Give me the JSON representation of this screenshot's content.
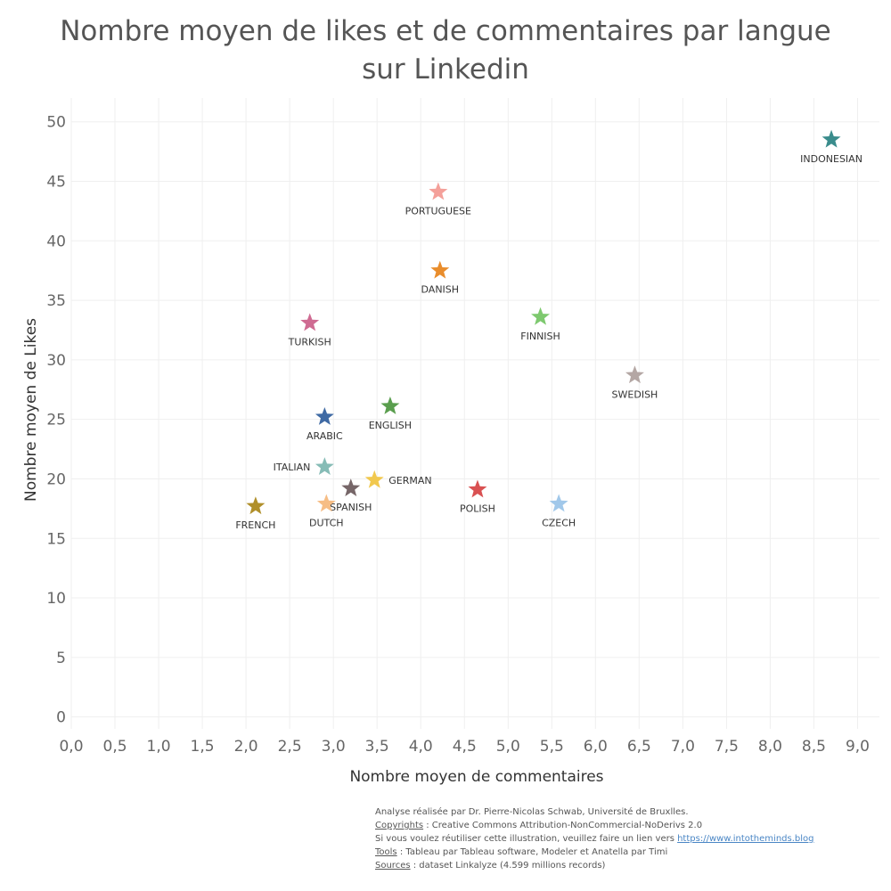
{
  "chart_data": {
    "type": "scatter",
    "title": "Nombre moyen de likes et de commentaires par langue sur Linkedin",
    "xlabel": "Nombre moyen de commentaires",
    "ylabel": "Nombre moyen de Likes",
    "xlim": [
      0,
      9.25
    ],
    "ylim": [
      -1,
      52
    ],
    "grid": true,
    "x_ticks": [
      "0,0",
      "0,5",
      "1,0",
      "1,5",
      "2,0",
      "2,5",
      "3,0",
      "3,5",
      "4,0",
      "4,5",
      "5,0",
      "5,5",
      "6,0",
      "6,5",
      "7,0",
      "7,5",
      "8,0",
      "8,5",
      "9,0"
    ],
    "y_ticks": [
      "0",
      "5",
      "10",
      "15",
      "20",
      "25",
      "30",
      "35",
      "40",
      "45",
      "50"
    ],
    "marker": "star",
    "points": [
      {
        "name": "INDONESIAN",
        "x": 8.7,
        "y": 48.5,
        "color": "#3a8c8c",
        "label_pos": "below"
      },
      {
        "name": "PORTUGUESE",
        "x": 4.2,
        "y": 44.1,
        "color": "#f4a09a",
        "label_pos": "below"
      },
      {
        "name": "DANISH",
        "x": 4.22,
        "y": 37.5,
        "color": "#e98d2c",
        "label_pos": "below"
      },
      {
        "name": "FINNISH",
        "x": 5.37,
        "y": 33.6,
        "color": "#7ec96f",
        "label_pos": "below"
      },
      {
        "name": "TURKISH",
        "x": 2.73,
        "y": 33.1,
        "color": "#cf6b92",
        "label_pos": "below"
      },
      {
        "name": "SWEDISH",
        "x": 6.45,
        "y": 28.7,
        "color": "#b4a7a4",
        "label_pos": "below"
      },
      {
        "name": "ENGLISH",
        "x": 3.65,
        "y": 26.1,
        "color": "#5a9e4e",
        "label_pos": "below"
      },
      {
        "name": "ARABIC",
        "x": 2.9,
        "y": 25.2,
        "color": "#3f6aa4",
        "label_pos": "below"
      },
      {
        "name": "ITALIAN",
        "x": 2.9,
        "y": 21.0,
        "color": "#86bcb6",
        "label_pos": "left"
      },
      {
        "name": "GERMAN",
        "x": 3.47,
        "y": 19.9,
        "color": "#f1c84e",
        "label_pos": "right"
      },
      {
        "name": "SPANISH",
        "x": 3.2,
        "y": 19.2,
        "color": "#766668",
        "label_pos": "below"
      },
      {
        "name": "POLISH",
        "x": 4.65,
        "y": 19.1,
        "color": "#d95152",
        "label_pos": "below"
      },
      {
        "name": "DUTCH",
        "x": 2.92,
        "y": 17.9,
        "color": "#f6bd85",
        "label_pos": "below"
      },
      {
        "name": "CZECH",
        "x": 5.58,
        "y": 17.9,
        "color": "#a1c8ea",
        "label_pos": "below"
      },
      {
        "name": "FRENCH",
        "x": 2.11,
        "y": 17.7,
        "color": "#b08f2a",
        "label_pos": "below"
      }
    ]
  },
  "footer": {
    "line1": "Analyse réalisée par Dr. Pierre-Nicolas Schwab, Université de Bruxlles.",
    "copyrights_label": "Copyrights",
    "copyrights_text": " : Creative Commons Attribution-NonCommercial-NoDerivs 2.0",
    "reuse_text": "Si vous voulez réutiliser cette illustration, veuillez faire un lien vers ",
    "reuse_link": "https://www.intotheminds.blog",
    "tools_label": "Tools",
    "tools_text": " : Tableau par Tableau software, Modeler et Anatella par Timi",
    "sources_label": "Sources",
    "sources_text": " : dataset Linkalyze (4.599 millions records)"
  },
  "colors": {
    "grid": "#efefef",
    "text": "#555555",
    "link": "#4a86c5"
  }
}
